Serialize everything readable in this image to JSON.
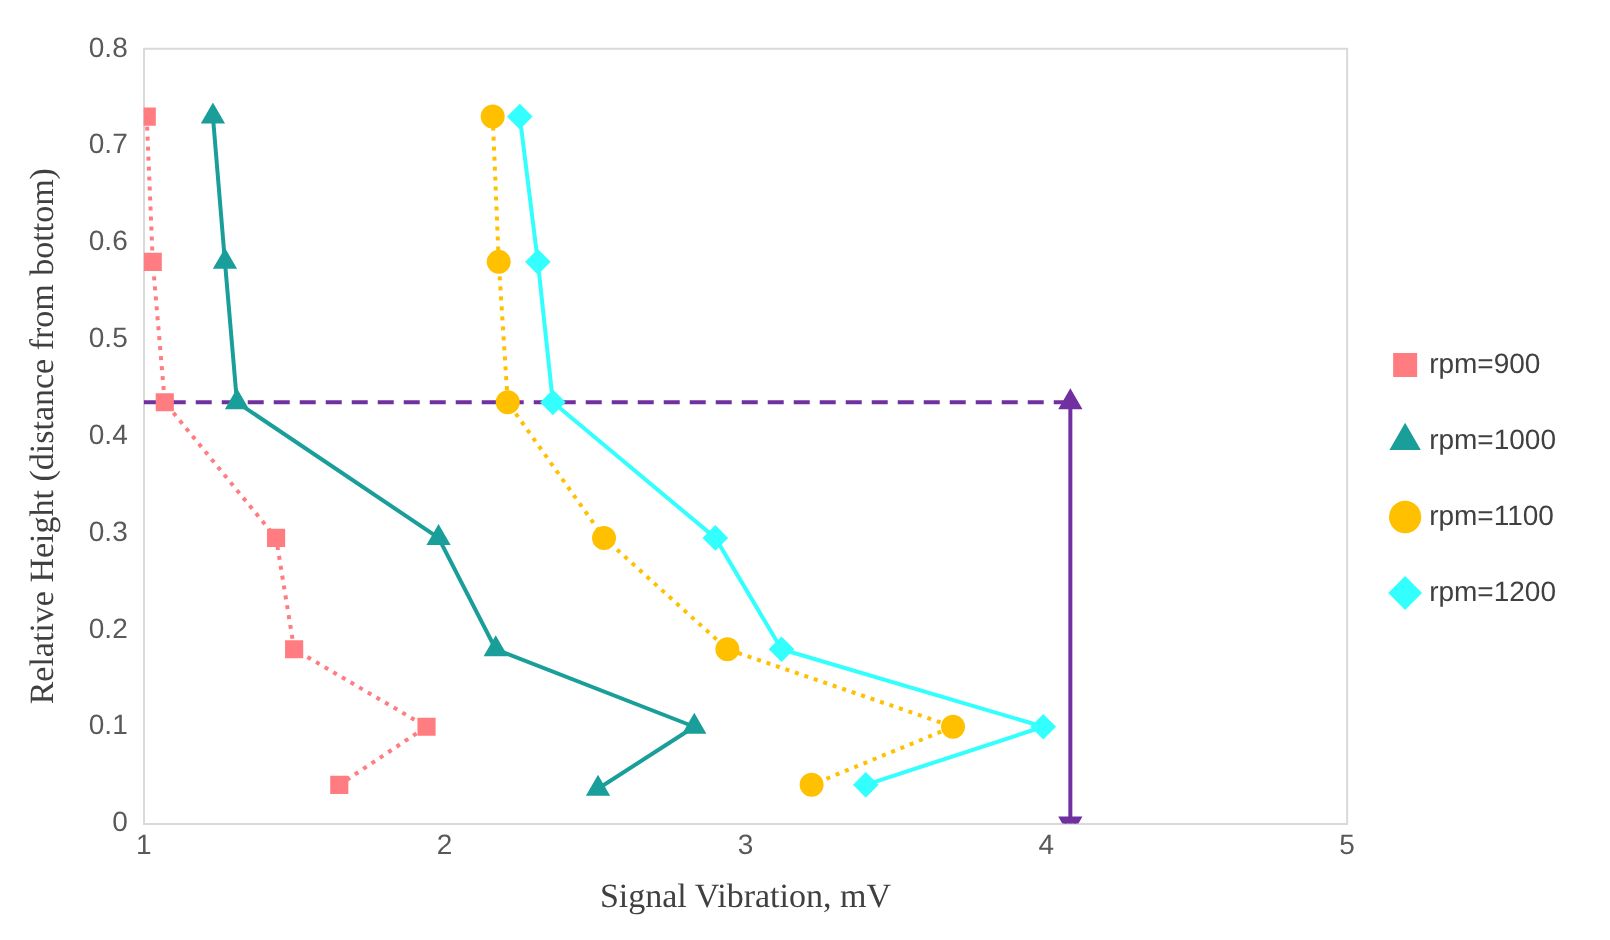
{
  "chart_data": {
    "type": "line",
    "xlabel": "Signal Vibration, mV",
    "ylabel": "Relative Height (distance from bottom)",
    "xlim": [
      1,
      5
    ],
    "xticks": [
      1,
      2,
      3,
      4,
      5
    ],
    "ylim": [
      0,
      0.8
    ],
    "yticks": [
      0,
      0.1,
      0.2,
      0.3,
      0.4,
      0.5,
      0.6,
      0.7,
      0.8
    ],
    "grid": false,
    "legend": "right",
    "series": [
      {
        "name": "rpm=900",
        "color": "#ff7c80",
        "marker": "square",
        "line_style": "dotted",
        "x": [
          1.01,
          1.03,
          1.07,
          1.44,
          1.5,
          1.94,
          1.65
        ],
        "values": [
          0.73,
          0.58,
          0.435,
          0.295,
          0.18,
          0.1,
          0.04
        ]
      },
      {
        "name": "rpm=1000",
        "color": "#1a9e9a",
        "marker": "triangle",
        "line_style": "solid",
        "x": [
          1.23,
          1.27,
          1.31,
          1.98,
          2.17,
          2.83,
          2.51
        ],
        "values": [
          0.73,
          0.58,
          0.435,
          0.295,
          0.18,
          0.1,
          0.036
        ]
      },
      {
        "name": "rpm=1100",
        "color": "#ffc000",
        "marker": "circle",
        "line_style": "dotted",
        "x": [
          2.16,
          2.18,
          2.21,
          2.53,
          2.94,
          3.69,
          3.22
        ],
        "values": [
          0.73,
          0.58,
          0.435,
          0.295,
          0.18,
          0.1,
          0.04
        ]
      },
      {
        "name": "rpm=1200",
        "color": "#33ffff",
        "marker": "diamond",
        "line_style": "solid",
        "x": [
          2.25,
          2.31,
          2.36,
          2.9,
          3.12,
          3.99,
          3.4
        ],
        "values": [
          0.73,
          0.58,
          0.435,
          0.295,
          0.18,
          0.1,
          0.04
        ]
      },
      {
        "color": "#7030a0",
        "line_style": "dashed",
        "x": [
          1,
          4.08
        ],
        "values": [
          0.435,
          0.435
        ]
      },
      {
        "color": "#7030a0",
        "marker": "triangle",
        "line_style": "solid",
        "x": [
          4.08,
          4.08
        ],
        "values": [
          0,
          0.435
        ]
      }
    ]
  }
}
